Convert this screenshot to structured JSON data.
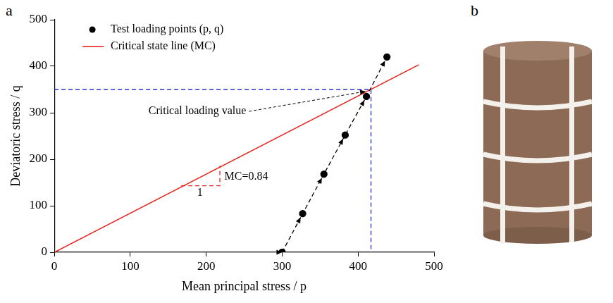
{
  "panel_labels": [
    "a",
    "b"
  ],
  "chart_data": {
    "type": "line",
    "x_label": "Mean principal stress / p",
    "y_label": "Deviatoric stress / q",
    "xlim": [
      0,
      500
    ],
    "ylim": [
      0,
      500
    ],
    "xticks": [
      0,
      100,
      200,
      300,
      400,
      500
    ],
    "yticks": [
      0,
      100,
      200,
      300,
      400,
      500
    ],
    "grid": false,
    "legend": "upper left",
    "series": [
      {
        "name": "Test loading points (p, q)",
        "color": "#000000",
        "marker": "circle",
        "line_style": "dashed",
        "x": [
          300,
          327,
          355,
          383,
          411,
          438
        ],
        "values": [
          0,
          83,
          168,
          252,
          335,
          420
        ]
      },
      {
        "name": "Critical state line (MC)",
        "color": "#e8211b",
        "marker": "none",
        "line_style": "solid",
        "x": [
          0,
          480
        ],
        "values": [
          0,
          403.2
        ]
      },
      {
        "color": "#000000",
        "marker": "none",
        "line_style": "dashed",
        "x": [
          0,
          300
        ],
        "values": [
          0,
          0
        ]
      },
      {
        "color": "#2b2bd0",
        "marker": "none",
        "line_style": "dashed",
        "x": [
          0,
          417,
          417
        ],
        "values": [
          350,
          350,
          0
        ]
      },
      {
        "color": "#e8211b",
        "marker": "none",
        "line_style": "dashed",
        "x": [
          167,
          218,
          218
        ],
        "values": [
          143,
          143,
          186
        ]
      }
    ],
    "annotations": [
      {
        "text": "Critical loading value",
        "x": 124,
        "y": 303,
        "arrow_to": [
          410,
          346
        ]
      },
      {
        "text": "1",
        "x": 188,
        "y": 127
      },
      {
        "text": "MC=0.84",
        "x": 224,
        "y": 163
      }
    ]
  }
}
